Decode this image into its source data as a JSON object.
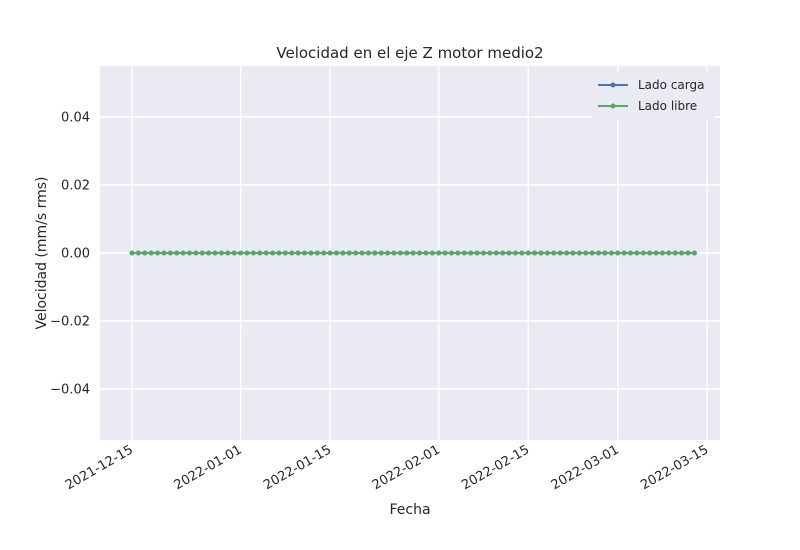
{
  "chart_data": {
    "type": "line",
    "title": "Velocidad en el eje Z motor medio2",
    "xlabel": "Fecha",
    "ylabel": "Velocidad (mm/s rms)",
    "x_start": "2021-12-15",
    "x_end": "2022-03-13",
    "xlim": [
      "2021-12-10",
      "2022-03-17"
    ],
    "ylim": [
      -0.055,
      0.055
    ],
    "x_ticks": [
      "2021-12-15",
      "2022-01-01",
      "2022-01-15",
      "2022-02-01",
      "2022-02-15",
      "2022-03-01",
      "2022-03-15"
    ],
    "y_ticks": [
      0.04,
      0.02,
      0.0,
      -0.02,
      -0.04
    ],
    "y_tick_labels": [
      "0.04",
      "0.02",
      "0.00",
      "−0.02",
      "−0.04"
    ],
    "series": [
      {
        "name": "Lado carga",
        "color": "#4c72b0",
        "value": 0.0
      },
      {
        "name": "Lado libre",
        "color": "#55a868",
        "value": 0.0
      }
    ],
    "legend_position": "top-right",
    "grid": true,
    "background": "#eaeaf2"
  }
}
